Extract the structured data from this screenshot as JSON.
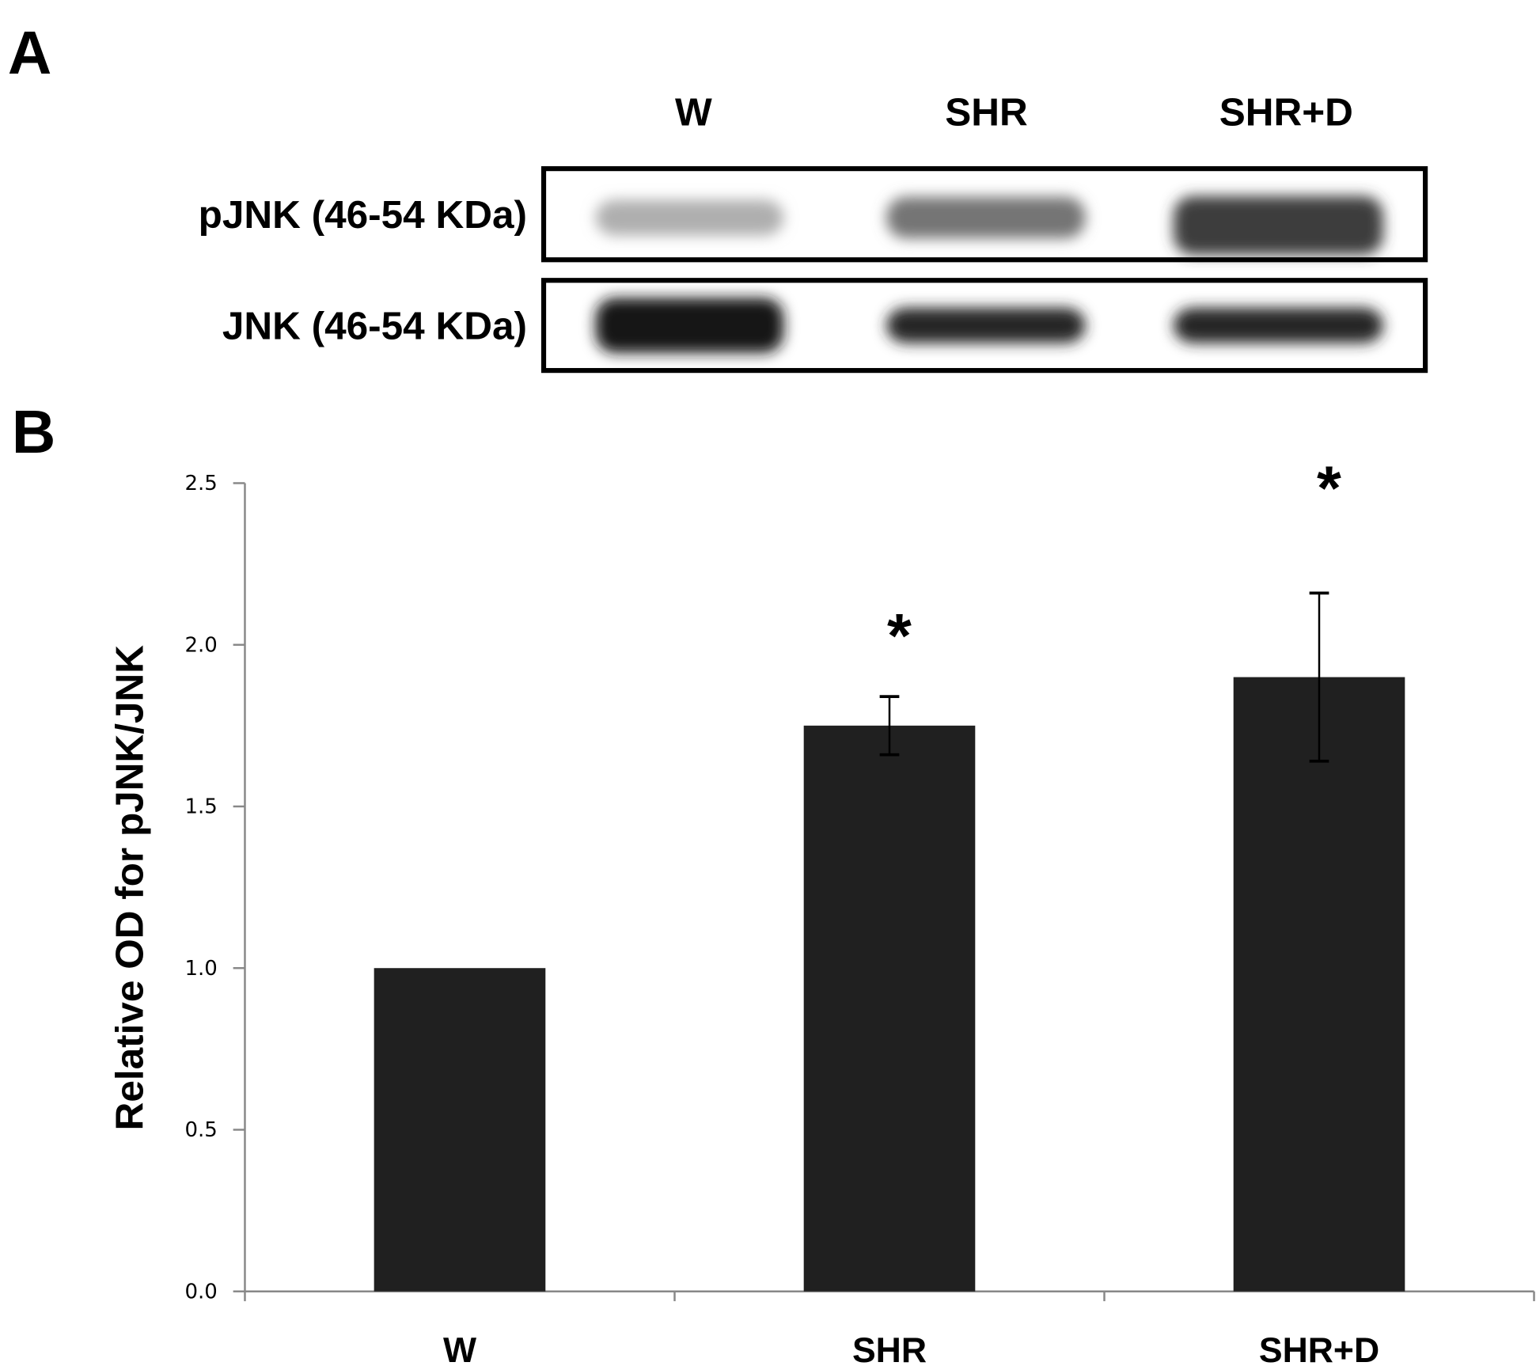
{
  "panel_a": {
    "label": "A",
    "lanes": [
      "W",
      "SHR",
      "SHR+D"
    ],
    "rows": [
      {
        "label": "pJNK (46-54 KDa)",
        "band_intensity": [
          0.35,
          0.6,
          0.85
        ]
      },
      {
        "label": "JNK (46-54 KDa)",
        "band_intensity": [
          1.0,
          0.95,
          0.95
        ]
      }
    ]
  },
  "panel_b": {
    "label": "B"
  },
  "chart_data": {
    "type": "bar",
    "title": "",
    "xlabel": "",
    "ylabel": "Relative OD for pJNK/JNK",
    "categories": [
      "W",
      "SHR",
      "SHR+D"
    ],
    "values": [
      1.0,
      1.75,
      1.9
    ],
    "errors": [
      0,
      0.09,
      0.26
    ],
    "annotations": [
      "",
      "*",
      "*"
    ],
    "ylim": [
      0,
      2.5
    ],
    "yticks": [
      "0.0",
      "0.5",
      "1.0",
      "1.5",
      "2.0",
      "2.5"
    ],
    "grid": false,
    "bar_color": "#202020"
  }
}
